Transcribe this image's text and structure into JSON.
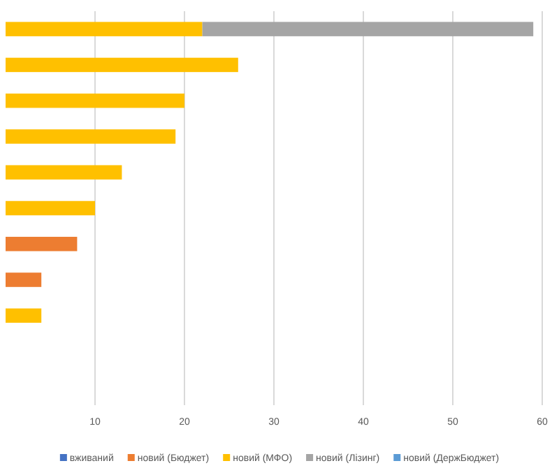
{
  "chart_data": {
    "type": "bar",
    "orientation": "horizontal",
    "stacked": true,
    "categories": [
      null,
      null,
      null,
      null,
      null,
      null,
      null,
      null,
      null,
      null,
      null
    ],
    "series": [
      {
        "name": "вживаний",
        "color": "#4472c4",
        "values": [
          null,
          null,
          null,
          null,
          null,
          null,
          null,
          null,
          null,
          null,
          null
        ]
      },
      {
        "name": "новий (Бюджет)",
        "color": "#ed7d31",
        "values": [
          null,
          null,
          null,
          null,
          null,
          null,
          8,
          4,
          null,
          null,
          null
        ]
      },
      {
        "name": "новий (МФО)",
        "color": "#ffc000",
        "values": [
          22,
          26,
          20,
          19,
          13,
          10,
          null,
          null,
          4,
          null,
          null
        ]
      },
      {
        "name": "новий (Лізинг)",
        "color": "#a5a5a5",
        "values": [
          37,
          null,
          null,
          null,
          null,
          null,
          null,
          null,
          null,
          null,
          null
        ]
      },
      {
        "name": "новий (ДержБюджет)",
        "color": "#5b9bd5",
        "values": [
          null,
          null,
          null,
          null,
          null,
          null,
          null,
          null,
          null,
          null,
          null
        ]
      }
    ],
    "xlim": [
      0,
      60
    ],
    "xticks": [
      10,
      20,
      30,
      40,
      50,
      60
    ],
    "grid": "x",
    "legend": "bottom"
  }
}
